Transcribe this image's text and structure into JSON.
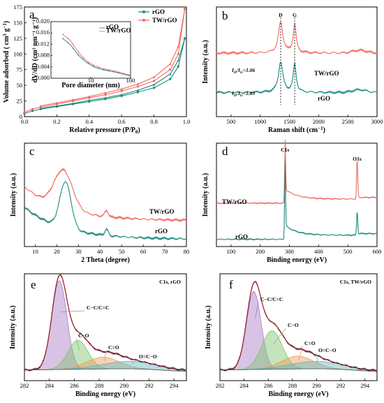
{
  "colors": {
    "rgo": "#1b8a7c",
    "twrgo": "#f06a62",
    "envelope": "#9b1c2c",
    "purple": "#a879c6",
    "green": "#7ec36a",
    "orange": "#ef9a5c",
    "cyan": "#5fb7c4",
    "blue": "#3c74c8"
  },
  "chart_data": [
    {
      "id": "a",
      "type": "line",
      "panel_label": "a",
      "xlabel": "Relative pressure (P/P0)",
      "ylabel": "Volume adsorbed ( cm³ g⁻¹ )",
      "xlim": [
        0,
        1.0
      ],
      "ylim": [
        0,
        175
      ],
      "xticks": [
        "0.0",
        "0.2",
        "0.4",
        "0.6",
        "0.8",
        "1.0"
      ],
      "yticks": [
        "0",
        "25",
        "50",
        "75",
        "100",
        "125",
        "150",
        "175"
      ],
      "legend": [
        "rGO",
        "TW/rGO"
      ],
      "legend_position": "top-right",
      "series": [
        {
          "name": "rGO",
          "color": "rgo",
          "adsorption": [
            [
              0.0,
              5
            ],
            [
              0.05,
              9
            ],
            [
              0.1,
              12
            ],
            [
              0.2,
              16
            ],
            [
              0.3,
              20
            ],
            [
              0.4,
              24
            ],
            [
              0.5,
              28
            ],
            [
              0.6,
              33
            ],
            [
              0.7,
              39
            ],
            [
              0.8,
              46
            ],
            [
              0.9,
              60
            ],
            [
              0.95,
              80
            ],
            [
              0.99,
              125
            ]
          ],
          "desorption": [
            [
              0.99,
              125
            ],
            [
              0.95,
              90
            ],
            [
              0.9,
              68
            ],
            [
              0.8,
              51
            ],
            [
              0.7,
              42
            ],
            [
              0.6,
              35
            ],
            [
              0.5,
              30
            ],
            [
              0.4,
              26
            ],
            [
              0.3,
              21
            ],
            [
              0.2,
              17
            ],
            [
              0.1,
              13
            ]
          ]
        },
        {
          "name": "TW/rGO",
          "color": "twrgo",
          "adsorption": [
            [
              0.0,
              7
            ],
            [
              0.05,
              12
            ],
            [
              0.1,
              15
            ],
            [
              0.2,
              20
            ],
            [
              0.3,
              25
            ],
            [
              0.4,
              30
            ],
            [
              0.5,
              35
            ],
            [
              0.6,
              41
            ],
            [
              0.7,
              48
            ],
            [
              0.8,
              57
            ],
            [
              0.9,
              75
            ],
            [
              0.95,
              100
            ],
            [
              0.99,
              172
            ]
          ],
          "desorption": [
            [
              0.99,
              172
            ],
            [
              0.95,
              112
            ],
            [
              0.9,
              84
            ],
            [
              0.8,
              63
            ],
            [
              0.7,
              52
            ],
            [
              0.6,
              44
            ],
            [
              0.5,
              38
            ],
            [
              0.4,
              32
            ],
            [
              0.3,
              27
            ],
            [
              0.2,
              22
            ],
            [
              0.1,
              17
            ]
          ]
        }
      ],
      "inset": {
        "xlabel": "Pore diameter (nm)",
        "ylabel": "dV/dD (cm³ nm⁻¹ g⁻¹)",
        "xlim": [
          1,
          100
        ],
        "ylim": [
          0,
          0.02
        ],
        "xscale": "log",
        "xticks": [
          "10",
          "100"
        ],
        "yticks": [
          "0.000",
          "0.004",
          "0.008",
          "0.012",
          "0.016",
          "0.020"
        ],
        "legend": [
          "rGO",
          "TW/rGO"
        ],
        "series": [
          {
            "name": "rGO",
            "color": "rgo",
            "points": [
              [
                2,
                0.014
              ],
              [
                3,
                0.012
              ],
              [
                5,
                0.008
              ],
              [
                8,
                0.0055
              ],
              [
                12,
                0.004
              ],
              [
                20,
                0.003
              ],
              [
                40,
                0.0022
              ],
              [
                100,
                0.0008
              ]
            ]
          },
          {
            "name": "TW/rGO",
            "color": "twrgo",
            "points": [
              [
                2,
                0.0155
              ],
              [
                3,
                0.0135
              ],
              [
                5,
                0.009
              ],
              [
                8,
                0.006
              ],
              [
                12,
                0.0045
              ],
              [
                20,
                0.0034
              ],
              [
                40,
                0.0025
              ],
              [
                100,
                0.001
              ]
            ]
          }
        ]
      }
    },
    {
      "id": "b",
      "type": "line",
      "panel_label": "b",
      "xlabel": "Raman shift (cm⁻¹)",
      "ylabel": "Intensity (a.u.)",
      "xlim": [
        250,
        3000
      ],
      "xticks": [
        "500",
        "1000",
        "1500",
        "2000",
        "2500",
        "3000"
      ],
      "peaks": [
        "D",
        "G"
      ],
      "peak_positions": [
        1350,
        1590
      ],
      "annotations": [
        {
          "text": "ID/IG=1.06",
          "color": "twrgo",
          "sub": "D",
          "sub2": "G",
          "value": "1.06"
        },
        {
          "text": "ID/IG=1.03",
          "color": "blue",
          "sub": "D",
          "sub2": "G",
          "value": "1.03"
        }
      ],
      "series": [
        {
          "name": "TW/rGO",
          "color": "twrgo",
          "offset": 0.58,
          "peak_heights": [
            0.95,
            0.9
          ]
        },
        {
          "name": "rGO",
          "color": "rgo",
          "offset": 0.22,
          "peak_heights": [
            0.92,
            0.9
          ]
        }
      ]
    },
    {
      "id": "c",
      "type": "line",
      "panel_label": "c",
      "xlabel": "2 Theta (degree)",
      "ylabel": "Intensity (a.u.)",
      "xlim": [
        5,
        80
      ],
      "xticks": [
        "10",
        "20",
        "30",
        "40",
        "50",
        "60",
        "70",
        "80"
      ],
      "series": [
        {
          "name": "TW/rGO",
          "color": "twrgo",
          "peaks": [
            [
              23,
              0.9
            ],
            [
              43,
              0.48
            ]
          ]
        },
        {
          "name": "rGO",
          "color": "rgo",
          "peaks": [
            [
              24,
              0.78
            ],
            [
              43,
              0.12
            ]
          ]
        }
      ]
    },
    {
      "id": "d",
      "type": "line",
      "panel_label": "d",
      "xlabel": "Binding energy (eV)",
      "ylabel": "Intensity (a.u.)",
      "xlim": [
        50,
        600
      ],
      "xticks": [
        "100",
        "200",
        "300",
        "400",
        "500",
        "600"
      ],
      "peak_labels": [
        "C1s",
        "O1s"
      ],
      "peak_positions": [
        285,
        532
      ],
      "series": [
        {
          "name": "TW/rGO",
          "color": "twrgo"
        },
        {
          "name": "rGO",
          "color": "rgo"
        }
      ]
    },
    {
      "id": "e",
      "type": "area",
      "panel_label": "e",
      "title": "C1s, rGO",
      "xlabel": "Binding energy (eV)",
      "ylabel": "Intensity (a.u.)",
      "xlim": [
        282,
        295
      ],
      "xticks": [
        "282",
        "284",
        "286",
        "288",
        "290",
        "292",
        "294"
      ],
      "components": [
        {
          "label": "C−C/C=C",
          "center": 284.8,
          "height": 0.83,
          "width": 0.6,
          "color": "purple"
        },
        {
          "label": "C−O",
          "center": 286.3,
          "height": 0.27,
          "width": 0.8,
          "color": "green"
        },
        {
          "label": "C=O",
          "center": 288.3,
          "height": 0.11,
          "width": 1.3,
          "color": "orange"
        },
        {
          "label": "O=C−O",
          "center": 290.5,
          "height": 0.07,
          "width": 2.2,
          "color": "cyan"
        }
      ]
    },
    {
      "id": "f",
      "type": "area",
      "panel_label": "f",
      "title": "C1s, TW/rGO",
      "xlabel": "Binding energy (eV)",
      "ylabel": "Intensity (a.u.)",
      "xlim": [
        282,
        295
      ],
      "xticks": [
        "282",
        "284",
        "286",
        "288",
        "290",
        "292",
        "294"
      ],
      "components": [
        {
          "label": "C−C/C=C",
          "center": 284.8,
          "height": 0.73,
          "width": 0.6,
          "color": "purple"
        },
        {
          "label": "C−O",
          "center": 286.3,
          "height": 0.36,
          "width": 0.85,
          "color": "green"
        },
        {
          "label": "C=O",
          "center": 288.4,
          "height": 0.12,
          "width": 1.3,
          "color": "orange"
        },
        {
          "label": "O=C−O",
          "center": 290.0,
          "height": 0.07,
          "width": 2.2,
          "color": "cyan"
        }
      ]
    }
  ]
}
